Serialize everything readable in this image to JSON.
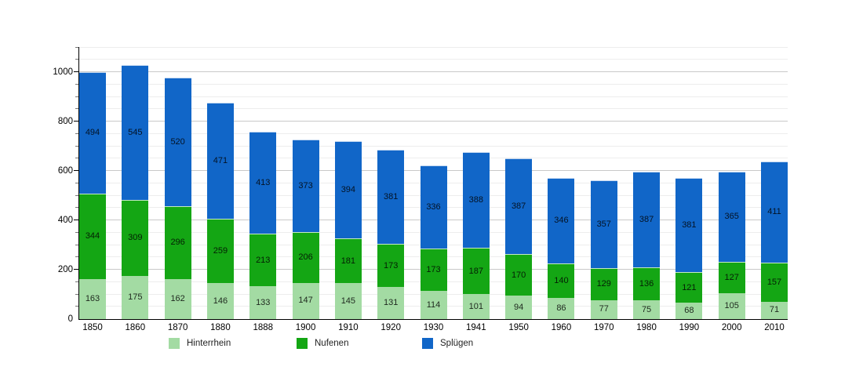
{
  "chart_data": {
    "type": "bar",
    "stacked": true,
    "title": "",
    "xlabel": "",
    "ylabel": "",
    "categories": [
      "1850",
      "1860",
      "1870",
      "1880",
      "1888",
      "1900",
      "1910",
      "1920",
      "1930",
      "1941",
      "1950",
      "1960",
      "1970",
      "1980",
      "1990",
      "2000",
      "2010"
    ],
    "series": [
      {
        "name": "Hinterrhein",
        "color": "#a3dba3",
        "values": [
          163,
          175,
          162,
          146,
          133,
          147,
          145,
          131,
          114,
          101,
          94,
          86,
          77,
          75,
          68,
          105,
          71
        ]
      },
      {
        "name": "Nufenen",
        "color": "#14a614",
        "values": [
          344,
          309,
          296,
          259,
          213,
          206,
          181,
          173,
          173,
          187,
          170,
          140,
          129,
          136,
          121,
          127,
          157
        ]
      },
      {
        "name": "Splügen",
        "color": "#1166c8",
        "values": [
          494,
          545,
          520,
          471,
          413,
          373,
          394,
          381,
          336,
          388,
          387,
          346,
          357,
          387,
          381,
          365,
          411
        ]
      }
    ],
    "ylim": [
      0,
      1100
    ],
    "yticks": [
      0,
      200,
      400,
      600,
      800,
      1000
    ],
    "grid": {
      "on": true,
      "minor_step": 50,
      "major_step": 200
    },
    "legend_position": "bottom",
    "value_labels": true
  }
}
